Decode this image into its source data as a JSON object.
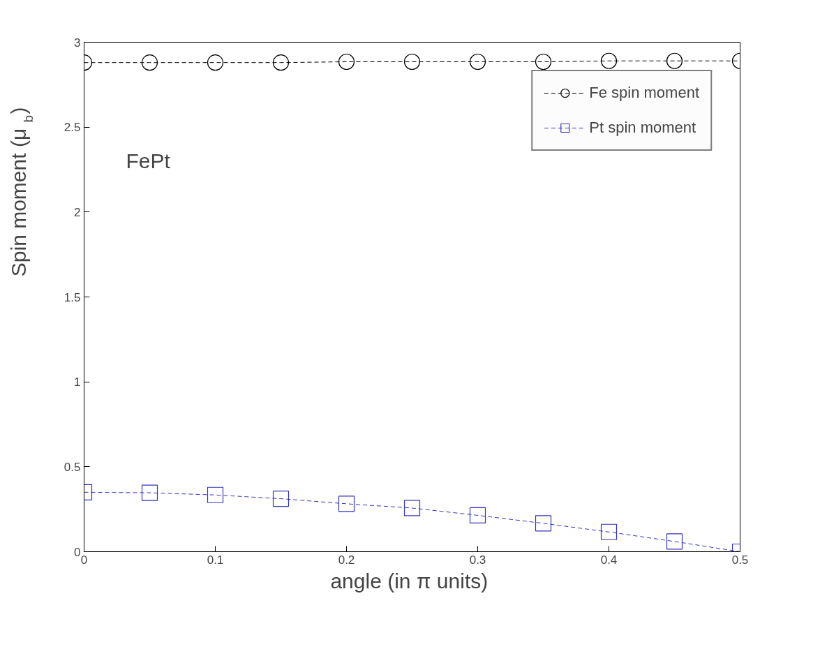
{
  "chart_data": {
    "type": "line",
    "xlabel": "angle  (in π units)",
    "ylabel": "Spin moment  (μ$_{b}$)",
    "x": [
      0,
      0.05,
      0.1,
      0.15,
      0.2,
      0.25,
      0.3,
      0.35,
      0.4,
      0.45,
      0.5
    ],
    "series": [
      {
        "name": "Fe spin moment",
        "color": "#000000",
        "marker": "circle",
        "line_style": "dashed",
        "values": [
          2.88,
          2.88,
          2.88,
          2.88,
          2.885,
          2.885,
          2.885,
          2.885,
          2.89,
          2.89,
          2.89
        ]
      },
      {
        "name": "Pt spin moment",
        "color": "#3333bb",
        "marker": "square",
        "line_style": "dashed",
        "values": [
          0.35,
          0.347,
          0.334,
          0.312,
          0.282,
          0.257,
          0.214,
          0.167,
          0.116,
          0.06,
          0.0
        ]
      }
    ],
    "annotations": [
      "FePt"
    ],
    "xlim": [
      0,
      0.5
    ],
    "ylim": [
      0,
      3
    ],
    "xticks": [
      0,
      0.1,
      0.2,
      0.3,
      0.4,
      0.5
    ],
    "yticks": [
      0,
      0.5,
      1,
      1.5,
      2,
      2.5,
      3
    ],
    "grid": false,
    "legend": "top right"
  }
}
